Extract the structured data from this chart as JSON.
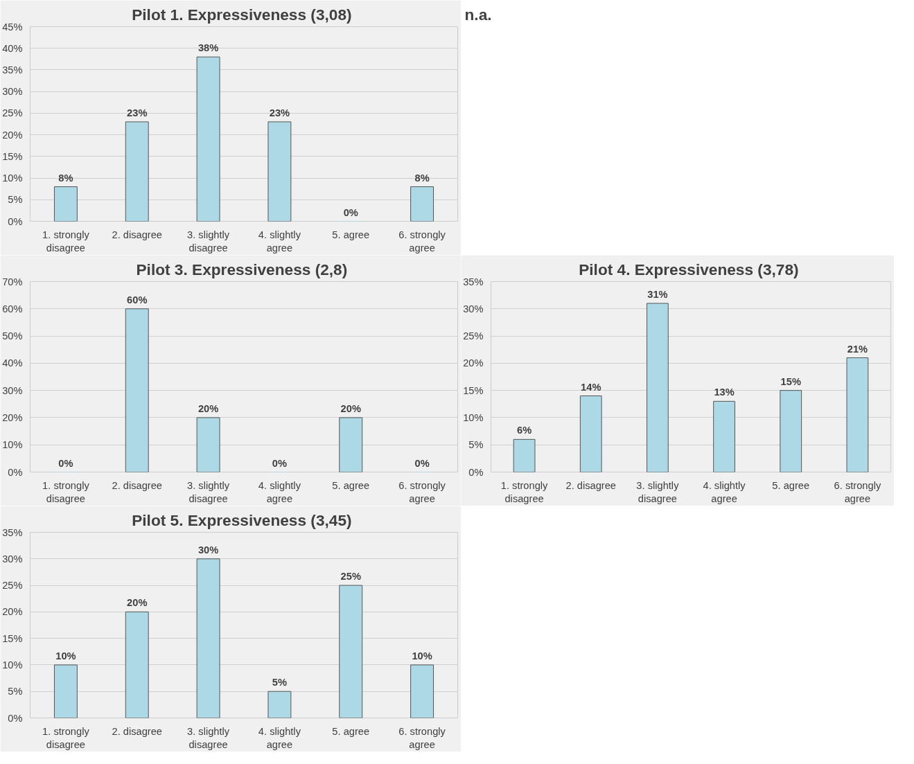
{
  "chart_data": [
    {
      "type": "bar",
      "title": "Pilot 1. Expressiveness  (3,08)",
      "categories": [
        "1. strongly disagree",
        "2. disagree",
        "3. slightly disagree",
        "4. slightly agree",
        "5. agree",
        "6. strongly agree"
      ],
      "values": [
        8,
        23,
        38,
        23,
        0,
        8
      ],
      "color": "#add8e6",
      "ylim": [
        0,
        45
      ],
      "yticks": [
        {
          "value": 0,
          "label": "0%"
        },
        {
          "value": 5,
          "label": "5%"
        },
        {
          "value": 10,
          "label": "10%"
        },
        {
          "value": 15,
          "label": "15%"
        },
        {
          "value": 20,
          "label": "20%"
        },
        {
          "value": 25,
          "label": "25%"
        },
        {
          "value": 30,
          "label": "30%"
        },
        {
          "value": 35,
          "label": "35%"
        },
        {
          "value": 40,
          "label": "40%"
        },
        {
          "value": 45,
          "label": "45%"
        }
      ],
      "value_labels": [
        "8%",
        "23%",
        "38%",
        "23%",
        "0%",
        "8%"
      ],
      "grid": "y"
    },
    {
      "type": "other",
      "title": "n.a."
    },
    {
      "type": "bar",
      "title": "Pilot 3. Expressiveness  (2,8)",
      "categories": [
        "1. strongly disagree",
        "2. disagree",
        "3. slightly disagree",
        "4. slightly agree",
        "5. agree",
        "6. strongly agree"
      ],
      "values": [
        0,
        60,
        20,
        0,
        20,
        0
      ],
      "color": "#add8e6",
      "ylim": [
        0,
        70
      ],
      "yticks": [
        {
          "value": 0,
          "label": "0%"
        },
        {
          "value": 10,
          "label": "10%"
        },
        {
          "value": 20,
          "label": "20%"
        },
        {
          "value": 30,
          "label": "30%"
        },
        {
          "value": 40,
          "label": "40%"
        },
        {
          "value": 50,
          "label": "50%"
        },
        {
          "value": 60,
          "label": "60%"
        },
        {
          "value": 70,
          "label": "70%"
        }
      ],
      "value_labels": [
        "0%",
        "60%",
        "20%",
        "0%",
        "20%",
        "0%"
      ],
      "grid": "y"
    },
    {
      "type": "bar",
      "title": "Pilot 4. Expressiveness  (3,78)",
      "categories": [
        "1. strongly disagree",
        "2. disagree",
        "3. slightly disagree",
        "4. slightly agree",
        "5. agree",
        "6. strongly agree"
      ],
      "values": [
        6,
        14,
        31,
        13,
        15,
        21
      ],
      "color": "#add8e6",
      "ylim": [
        0,
        35
      ],
      "yticks": [
        {
          "value": 0,
          "label": "0%"
        },
        {
          "value": 5,
          "label": "5%"
        },
        {
          "value": 10,
          "label": "10%"
        },
        {
          "value": 15,
          "label": "15%"
        },
        {
          "value": 20,
          "label": "20%"
        },
        {
          "value": 25,
          "label": "25%"
        },
        {
          "value": 30,
          "label": "30%"
        },
        {
          "value": 35,
          "label": "35%"
        }
      ],
      "value_labels": [
        "6%",
        "14%",
        "31%",
        "13%",
        "15%",
        "21%"
      ],
      "grid": "y"
    },
    {
      "type": "bar",
      "title": "Pilot 5. Expressiveness  (3,45)",
      "categories": [
        "1. strongly disagree",
        "2. disagree",
        "3. slightly disagree",
        "4. slightly agree",
        "5. agree",
        "6. strongly agree"
      ],
      "values": [
        10,
        20,
        30,
        5,
        25,
        10
      ],
      "color": "#add8e6",
      "ylim": [
        0,
        35
      ],
      "yticks": [
        {
          "value": 0,
          "label": "0%"
        },
        {
          "value": 5,
          "label": "5%"
        },
        {
          "value": 10,
          "label": "10%"
        },
        {
          "value": 15,
          "label": "15%"
        },
        {
          "value": 20,
          "label": "20%"
        },
        {
          "value": 25,
          "label": "25%"
        },
        {
          "value": 30,
          "label": "30%"
        },
        {
          "value": 35,
          "label": "35%"
        }
      ],
      "value_labels": [
        "10%",
        "20%",
        "30%",
        "5%",
        "25%",
        "10%"
      ],
      "grid": "y"
    }
  ]
}
